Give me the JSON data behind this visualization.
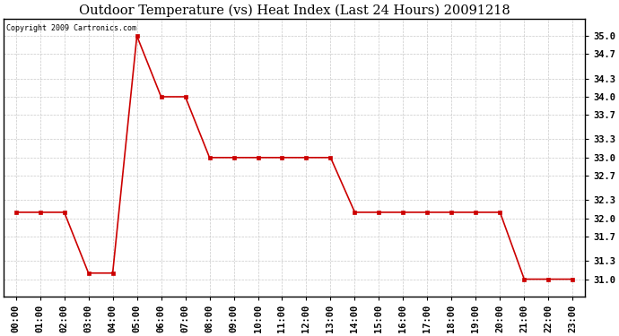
{
  "title": "Outdoor Temperature (vs) Heat Index (Last 24 Hours) 20091218",
  "copyright_text": "Copyright 2009 Cartronics.com",
  "x_labels": [
    "00:00",
    "01:00",
    "02:00",
    "03:00",
    "04:00",
    "05:00",
    "06:00",
    "07:00",
    "08:00",
    "09:00",
    "10:00",
    "11:00",
    "12:00",
    "13:00",
    "14:00",
    "15:00",
    "16:00",
    "17:00",
    "18:00",
    "19:00",
    "20:00",
    "21:00",
    "22:00",
    "23:00"
  ],
  "y_values": [
    32.1,
    32.1,
    32.1,
    31.1,
    31.1,
    35.0,
    34.0,
    34.0,
    33.0,
    33.0,
    33.0,
    33.0,
    33.0,
    33.0,
    32.1,
    32.1,
    32.1,
    32.1,
    32.1,
    32.1,
    32.1,
    31.0,
    31.0,
    31.0
  ],
  "line_color": "#cc0000",
  "marker": "s",
  "marker_size": 2.5,
  "line_width": 1.2,
  "ylim_min": 30.72,
  "ylim_max": 35.28,
  "yticks": [
    31.0,
    31.3,
    31.7,
    32.0,
    32.3,
    32.7,
    33.0,
    33.3,
    33.7,
    34.0,
    34.3,
    34.7,
    35.0
  ],
  "background_color": "#ffffff",
  "grid_color": "#bbbbbb",
  "title_fontsize": 10.5,
  "copyright_fontsize": 6.0,
  "tick_fontsize": 7.5,
  "fig_width": 6.9,
  "fig_height": 3.75,
  "dpi": 100
}
